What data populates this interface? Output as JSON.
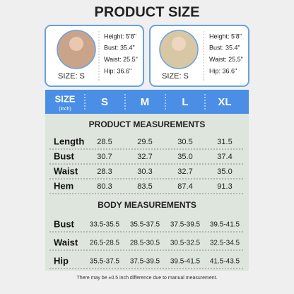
{
  "title": "PRODUCT SIZE",
  "models": [
    {
      "size": "SIZE: S",
      "stats": [
        "Height: 5'8\"",
        "Bust: 35.4\"",
        "Waist: 25.5\"",
        "Hip: 36.6\""
      ]
    },
    {
      "size": "SIZE: S",
      "stats": [
        "Height: 5'8\"",
        "Bust: 35.4\"",
        "Waist: 25.5\"",
        "Hip: 36.6\""
      ]
    }
  ],
  "table": {
    "header": {
      "label": "SIZE",
      "unit": "(inch)",
      "sizes": [
        "S",
        "M",
        "L",
        "XL"
      ]
    },
    "sections": [
      {
        "title": "PRODUCT MEASUREMENTS",
        "rows": [
          [
            "Length",
            "28.5",
            "29.5",
            "30.5",
            "31.5"
          ],
          [
            "Bust",
            "30.7",
            "32.7",
            "35.0",
            "37.4"
          ],
          [
            "Waist",
            "28.3",
            "30.3",
            "32.7",
            "35.0"
          ],
          [
            "Hem",
            "80.3",
            "83.5",
            "87.4",
            "91.3"
          ]
        ]
      },
      {
        "title": "BODY MEASUREMENTS",
        "rows": [
          [
            "Bust",
            "33.5-35.5",
            "35.5-37.5",
            "37.5-39.5",
            "39.5-41.5"
          ],
          [
            "Waist",
            "26.5-28.5",
            "28.5-30.5",
            "30.5-32.5",
            "32.5-34.5"
          ],
          [
            "Hip",
            "35.5-37.5",
            "37.5-39.5",
            "39.5-41.5",
            "41.5-43.5"
          ]
        ]
      }
    ]
  },
  "footnote": "There may be ±0.5 inch difference due to manual measurement."
}
